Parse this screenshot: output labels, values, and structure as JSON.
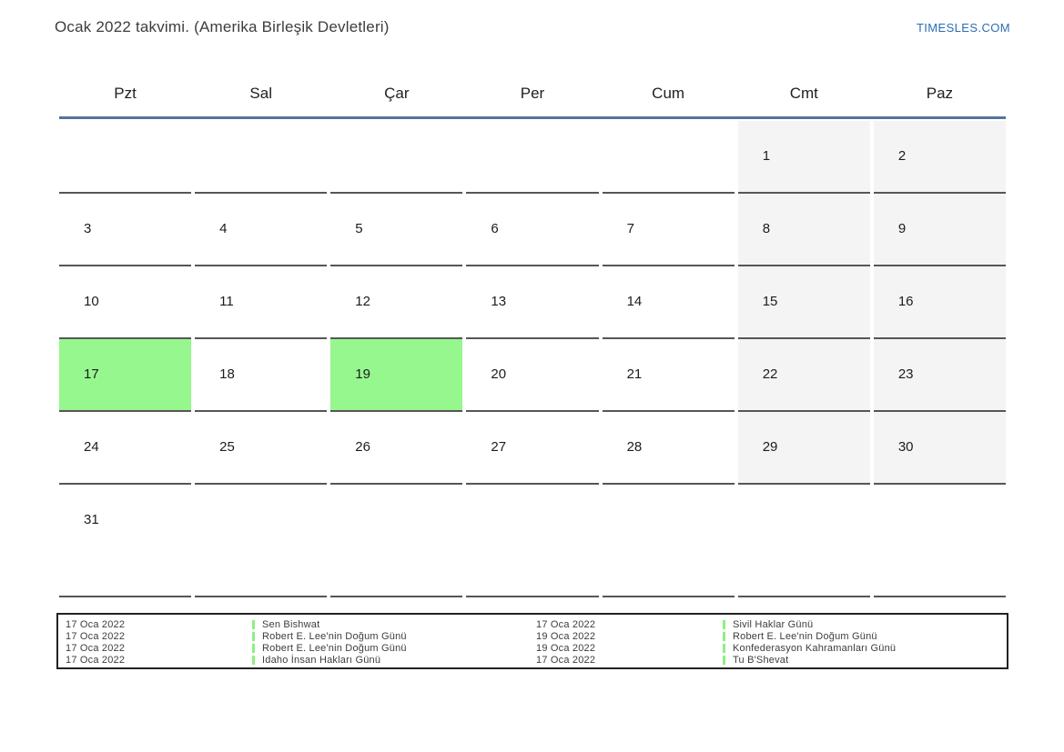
{
  "header": {
    "title": "Ocak 2022 takvimi. (Amerika Birleşik Devletleri)",
    "site_link": "TIMESLES.COM"
  },
  "weekdays": [
    "Pzt",
    "Sal",
    "Çar",
    "Per",
    "Cum",
    "Cmt",
    "Paz"
  ],
  "weeks": [
    [
      {
        "day": "",
        "weekend": false,
        "highlight": false
      },
      {
        "day": "",
        "weekend": false,
        "highlight": false
      },
      {
        "day": "",
        "weekend": false,
        "highlight": false
      },
      {
        "day": "",
        "weekend": false,
        "highlight": false
      },
      {
        "day": "",
        "weekend": false,
        "highlight": false
      },
      {
        "day": "1",
        "weekend": true,
        "highlight": false
      },
      {
        "day": "2",
        "weekend": true,
        "highlight": false
      }
    ],
    [
      {
        "day": "3",
        "weekend": false,
        "highlight": false
      },
      {
        "day": "4",
        "weekend": false,
        "highlight": false
      },
      {
        "day": "5",
        "weekend": false,
        "highlight": false
      },
      {
        "day": "6",
        "weekend": false,
        "highlight": false
      },
      {
        "day": "7",
        "weekend": false,
        "highlight": false
      },
      {
        "day": "8",
        "weekend": true,
        "highlight": false
      },
      {
        "day": "9",
        "weekend": true,
        "highlight": false
      }
    ],
    [
      {
        "day": "10",
        "weekend": false,
        "highlight": false
      },
      {
        "day": "11",
        "weekend": false,
        "highlight": false
      },
      {
        "day": "12",
        "weekend": false,
        "highlight": false
      },
      {
        "day": "13",
        "weekend": false,
        "highlight": false
      },
      {
        "day": "14",
        "weekend": false,
        "highlight": false
      },
      {
        "day": "15",
        "weekend": true,
        "highlight": false
      },
      {
        "day": "16",
        "weekend": true,
        "highlight": false
      }
    ],
    [
      {
        "day": "17",
        "weekend": false,
        "highlight": true
      },
      {
        "day": "18",
        "weekend": false,
        "highlight": false
      },
      {
        "day": "19",
        "weekend": false,
        "highlight": true
      },
      {
        "day": "20",
        "weekend": false,
        "highlight": false
      },
      {
        "day": "21",
        "weekend": false,
        "highlight": false
      },
      {
        "day": "22",
        "weekend": true,
        "highlight": false
      },
      {
        "day": "23",
        "weekend": true,
        "highlight": false
      }
    ],
    [
      {
        "day": "24",
        "weekend": false,
        "highlight": false
      },
      {
        "day": "25",
        "weekend": false,
        "highlight": false
      },
      {
        "day": "26",
        "weekend": false,
        "highlight": false
      },
      {
        "day": "27",
        "weekend": false,
        "highlight": false
      },
      {
        "day": "28",
        "weekend": false,
        "highlight": false
      },
      {
        "day": "29",
        "weekend": true,
        "highlight": false
      },
      {
        "day": "30",
        "weekend": true,
        "highlight": false
      }
    ],
    [
      {
        "day": "31",
        "weekend": false,
        "highlight": false
      },
      {
        "day": "",
        "weekend": false,
        "highlight": false
      },
      {
        "day": "",
        "weekend": false,
        "highlight": false
      },
      {
        "day": "",
        "weekend": false,
        "highlight": false
      },
      {
        "day": "",
        "weekend": false,
        "highlight": false
      },
      {
        "day": "",
        "weekend": false,
        "highlight": false
      },
      {
        "day": "",
        "weekend": false,
        "highlight": false
      }
    ]
  ],
  "events": {
    "left_column": [
      {
        "date": "17 Oca 2022",
        "name": "Sen Bishwat"
      },
      {
        "date": "17 Oca 2022",
        "name": "Robert E. Lee'nin Doğum Günü"
      },
      {
        "date": "17 Oca 2022",
        "name": "Robert E. Lee'nin Doğum Günü"
      },
      {
        "date": "17 Oca 2022",
        "name": "Idaho İnsan Hakları Günü"
      }
    ],
    "right_column": [
      {
        "date": "17 Oca 2022",
        "name": "Sivil Haklar Günü"
      },
      {
        "date": "19 Oca 2022",
        "name": "Robert E. Lee'nin Doğum Günü"
      },
      {
        "date": "19 Oca 2022",
        "name": "Konfederasyon Kahramanları Günü"
      },
      {
        "date": "17 Oca 2022",
        "name": "Tu B'Shevat"
      }
    ]
  },
  "colors": {
    "highlight_green": "#96f78e",
    "event_bar_green": "#8df084",
    "weekend_gray": "#f4f4f4",
    "header_line_blue": "#54749e",
    "link_blue": "#2b6cb3",
    "cell_border_gray": "#565656",
    "events_box_border": "#222222"
  }
}
